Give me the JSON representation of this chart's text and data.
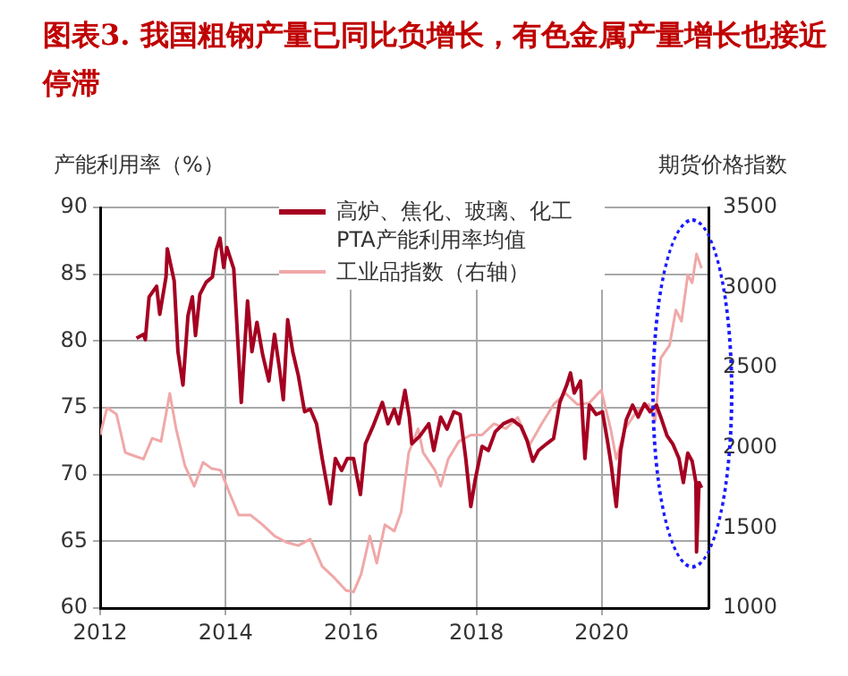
{
  "chart_data": {
    "type": "line",
    "title": "图表3. 我国粗钢产量已同比负增长，有色金属产量增长也接近停滞",
    "ylabel": "产能利用率（%）",
    "y2label": "期货价格指数",
    "xlim": [
      2012,
      2021.7
    ],
    "xticks": [
      2012,
      2014,
      2016,
      2018,
      2020
    ],
    "ylim": [
      60,
      90
    ],
    "yticks": [
      60,
      65,
      70,
      75,
      80,
      85,
      90
    ],
    "y2lim": [
      1000,
      3500
    ],
    "y2ticks": [
      1000,
      1500,
      2000,
      2500,
      3000,
      3500
    ],
    "grid": true,
    "legend": "top right",
    "series": [
      {
        "name": "高炉、焦化、玻璃、化工PTA产能利用率均值",
        "color": "#a50021",
        "x": [
          2012.58,
          2012.69,
          2012.72,
          2012.78,
          2012.9,
          2012.95,
          2013.05,
          2013.07,
          2013.18,
          2013.24,
          2013.32,
          2013.4,
          2013.47,
          2013.52,
          2013.59,
          2013.69,
          2013.79,
          2013.85,
          2013.91,
          2013.97,
          2014.02,
          2014.13,
          2014.25,
          2014.35,
          2014.42,
          2014.5,
          2014.59,
          2014.69,
          2014.78,
          2014.86,
          2014.92,
          2014.99,
          2015.07,
          2015.16,
          2015.26,
          2015.35,
          2015.45,
          2015.54,
          2015.67,
          2015.75,
          2015.85,
          2015.94,
          2016.04,
          2016.15,
          2016.23,
          2016.35,
          2016.5,
          2016.59,
          2016.69,
          2016.76,
          2016.86,
          2016.93,
          2016.97,
          2017.1,
          2017.24,
          2017.32,
          2017.43,
          2017.53,
          2017.64,
          2017.74,
          2017.83,
          2017.91,
          2017.98,
          2018.09,
          2018.19,
          2018.3,
          2018.43,
          2018.57,
          2018.71,
          2018.81,
          2018.9,
          2018.99,
          2019.12,
          2019.23,
          2019.33,
          2019.44,
          2019.5,
          2019.56,
          2019.66,
          2019.73,
          2019.8,
          2019.91,
          2020.01,
          2020.09,
          2020.15,
          2020.23,
          2020.3,
          2020.39,
          2020.49,
          2020.58,
          2020.68,
          2020.77,
          2020.87,
          2020.94,
          2021.04,
          2021.13,
          2021.23,
          2021.3,
          2021.37,
          2021.44,
          2021.5,
          2021.51,
          2021.55,
          2021.59
        ],
        "values": [
          80.2,
          80.5,
          80.1,
          83.3,
          84.1,
          82,
          84.8,
          86.9,
          84.5,
          79.2,
          76.7,
          81.9,
          83.3,
          80.4,
          83.5,
          84.4,
          84.8,
          86.8,
          87.7,
          85.5,
          87,
          85.4,
          75.4,
          83,
          79.2,
          81.4,
          79,
          77,
          80.5,
          77.9,
          75.6,
          81.6,
          79.2,
          77.4,
          74.7,
          74.9,
          73.8,
          71.2,
          67.8,
          71.2,
          70.3,
          71.2,
          71.2,
          68.5,
          72.3,
          73.6,
          75.4,
          73.8,
          74.9,
          73.8,
          76.3,
          74.3,
          72.3,
          72.9,
          73.8,
          71.8,
          74.3,
          73.4,
          74.7,
          74.5,
          71.2,
          67.6,
          69.6,
          72.1,
          71.8,
          73.2,
          73.8,
          74.1,
          73.6,
          72.5,
          71,
          71.8,
          72.3,
          72.7,
          75.4,
          76.7,
          77.6,
          76.1,
          77,
          71.2,
          75.2,
          74.5,
          74.7,
          72.5,
          70.7,
          67.6,
          71.8,
          74.1,
          75.2,
          74.3,
          75.3,
          74.7,
          75.2,
          74.3,
          72.9,
          72.3,
          71.2,
          69.4,
          71.6,
          71,
          69.4,
          64.2,
          69.4,
          69
        ]
      },
      {
        "name": "工业品指数（右轴）",
        "color": "#f0a8a8",
        "axis": "y2",
        "x": [
          2012,
          2012.11,
          2012.26,
          2012.4,
          2012.54,
          2012.69,
          2012.83,
          2012.97,
          2013.11,
          2013.21,
          2013.35,
          2013.5,
          2013.64,
          2013.78,
          2013.92,
          2014.07,
          2014.21,
          2014.4,
          2014.59,
          2014.78,
          2014.97,
          2015.16,
          2015.35,
          2015.54,
          2015.73,
          2015.92,
          2016.04,
          2016.16,
          2016.3,
          2016.41,
          2016.54,
          2016.69,
          2016.8,
          2016.92,
          2017.07,
          2017.15,
          2017.34,
          2017.43,
          2017.55,
          2017.72,
          2017.91,
          2018.09,
          2018.28,
          2018.47,
          2018.66,
          2018.85,
          2019.04,
          2019.23,
          2019.42,
          2019.61,
          2019.8,
          2019.99,
          2020.14,
          2020.23,
          2020.37,
          2020.56,
          2020.75,
          2020.85,
          2020.94,
          2021.08,
          2021.18,
          2021.27,
          2021.37,
          2021.44,
          2021.51,
          2021.59
        ],
        "values": [
          2080,
          2250,
          2210,
          1970,
          1950,
          1930,
          2060,
          2040,
          2340,
          2120,
          1890,
          1760,
          1910,
          1870,
          1860,
          1710,
          1580,
          1580,
          1520,
          1450,
          1410,
          1390,
          1430,
          1260,
          1190,
          1110,
          1100,
          1210,
          1450,
          1280,
          1520,
          1480,
          1600,
          1970,
          2120,
          1970,
          1860,
          1760,
          1930,
          2040,
          2080,
          2080,
          2150,
          2120,
          2190,
          2020,
          2150,
          2270,
          2340,
          2270,
          2280,
          2360,
          2120,
          1930,
          2120,
          2230,
          2270,
          2170,
          2560,
          2640,
          2860,
          2790,
          3080,
          3030,
          3210,
          3120
        ]
      }
    ]
  }
}
